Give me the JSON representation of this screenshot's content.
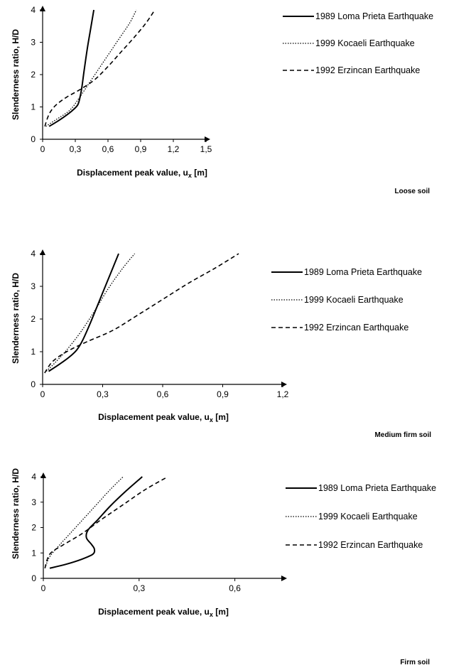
{
  "chart_data": [
    {
      "type": "line",
      "soil_label": "Loose soil",
      "xlabel": "Displacement peak value, u",
      "xlabel_sub": "x",
      "xlabel_unit": " [m]",
      "ylabel": "Slenderness ratio, H/D",
      "xlim": [
        0,
        1.5
      ],
      "ylim": [
        0,
        4
      ],
      "xticks": [
        "0",
        "0,3",
        "0,6",
        "0,9",
        "1,2",
        "1,5"
      ],
      "yticks": [
        "0",
        "1",
        "2",
        "3",
        "4"
      ],
      "grid": false,
      "legend": "right",
      "series": [
        {
          "name": "1989 Loma Prieta Earthquake",
          "style": "solid",
          "x": [
            0.06,
            0.12,
            0.2,
            0.27,
            0.32,
            0.34,
            0.36,
            0.38,
            0.41,
            0.44,
            0.47
          ],
          "y": [
            0.4,
            0.52,
            0.7,
            0.88,
            1.05,
            1.25,
            1.6,
            2.1,
            2.8,
            3.4,
            4.0
          ]
        },
        {
          "name": "1999 Kocaeli Earthquake",
          "style": "dotted",
          "x": [
            0.03,
            0.12,
            0.25,
            0.34,
            0.42,
            0.5,
            0.6,
            0.7,
            0.8,
            0.86
          ],
          "y": [
            0.4,
            0.6,
            0.9,
            1.3,
            1.7,
            2.1,
            2.6,
            3.1,
            3.6,
            4.0
          ]
        },
        {
          "name": "1992 Erzincan Earthquake",
          "style": "dashed",
          "x": [
            0.02,
            0.06,
            0.12,
            0.22,
            0.35,
            0.48,
            0.6,
            0.72,
            0.84,
            0.95,
            1.03
          ],
          "y": [
            0.4,
            0.78,
            1.05,
            1.3,
            1.55,
            1.85,
            2.25,
            2.7,
            3.15,
            3.6,
            4.0
          ]
        }
      ]
    },
    {
      "type": "line",
      "soil_label": "Medium firm soil",
      "xlabel": "Displacement peak value, u",
      "xlabel_sub": "x",
      "xlabel_unit": " [m]",
      "ylabel": "Slenderness ratio, H/D",
      "xlim": [
        0,
        1.2
      ],
      "ylim": [
        0,
        4
      ],
      "xticks": [
        "0",
        "0,3",
        "0,6",
        "0,9",
        "1,2"
      ],
      "yticks": [
        "0",
        "1",
        "2",
        "3",
        "4"
      ],
      "grid": false,
      "legend": "right",
      "series": [
        {
          "name": "1989 Loma Prieta Earthquake",
          "style": "solid",
          "x": [
            0.03,
            0.08,
            0.13,
            0.17,
            0.2,
            0.24,
            0.28,
            0.32,
            0.35,
            0.38
          ],
          "y": [
            0.4,
            0.6,
            0.82,
            1.05,
            1.35,
            1.9,
            2.5,
            3.1,
            3.55,
            4.0
          ]
        },
        {
          "name": "1999 Kocaeli Earthquake",
          "style": "dotted",
          "x": [
            0.01,
            0.06,
            0.12,
            0.19,
            0.26,
            0.33,
            0.4,
            0.46
          ],
          "y": [
            0.35,
            0.65,
            1.05,
            1.6,
            2.25,
            2.95,
            3.55,
            4.0
          ]
        },
        {
          "name": "1992 Erzincan Earthquake",
          "style": "dashed",
          "x": [
            0.01,
            0.05,
            0.12,
            0.22,
            0.35,
            0.47,
            0.6,
            0.73,
            0.86,
            0.98
          ],
          "y": [
            0.35,
            0.7,
            1.0,
            1.3,
            1.65,
            2.1,
            2.6,
            3.1,
            3.55,
            4.0
          ]
        }
      ]
    },
    {
      "type": "line",
      "soil_label": "Firm soil",
      "xlabel": "Displacement peak value, u",
      "xlabel_sub": "x",
      "xlabel_unit": " [m]",
      "ylabel": "Slenderness ratio, H/D",
      "xlim": [
        0,
        0.75
      ],
      "ylim": [
        0,
        4
      ],
      "xticks": [
        "0",
        "0,3",
        "0,6"
      ],
      "yticks": [
        "0",
        "1",
        "2",
        "3",
        "4"
      ],
      "grid": false,
      "legend": "right",
      "series": [
        {
          "name": "1989 Loma Prieta Earthquake",
          "style": "solid",
          "x": [
            0.02,
            0.07,
            0.12,
            0.155,
            0.16,
            0.15,
            0.135,
            0.14,
            0.17,
            0.21,
            0.26,
            0.31
          ],
          "y": [
            0.4,
            0.55,
            0.75,
            0.95,
            1.15,
            1.35,
            1.6,
            1.9,
            2.3,
            2.85,
            3.45,
            4.0
          ]
        },
        {
          "name": "1999 Kocaeli Earthquake",
          "style": "dotted",
          "x": [
            0.005,
            0.02,
            0.05,
            0.09,
            0.13,
            0.17,
            0.21,
            0.25
          ],
          "y": [
            0.4,
            0.85,
            1.3,
            1.85,
            2.4,
            2.95,
            3.5,
            4.0
          ]
        },
        {
          "name": "1992 Erzincan Earthquake",
          "style": "dashed",
          "x": [
            0.005,
            0.02,
            0.06,
            0.12,
            0.18,
            0.25,
            0.32,
            0.39
          ],
          "y": [
            0.4,
            0.95,
            1.3,
            1.75,
            2.3,
            2.9,
            3.5,
            4.0
          ]
        }
      ]
    }
  ]
}
